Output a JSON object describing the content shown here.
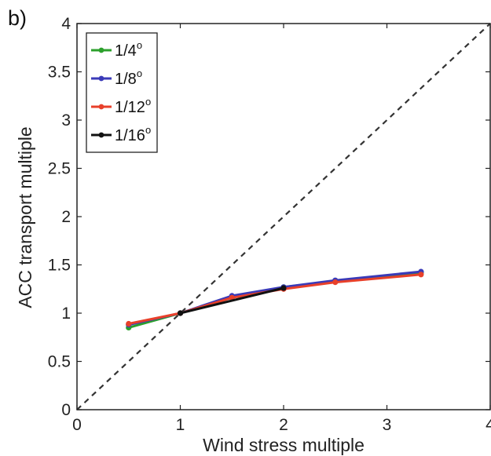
{
  "panel_label": "b)",
  "chart_data": {
    "type": "line",
    "title": "",
    "xlabel": "Wind stress multiple",
    "ylabel": "ACC transport multiple",
    "xlim": [
      0,
      4
    ],
    "ylim": [
      0,
      4
    ],
    "xticks": [
      "0",
      "1",
      "2",
      "3",
      "4"
    ],
    "yticks": [
      "0",
      "0.5",
      "1",
      "1.5",
      "2",
      "2.5",
      "3",
      "3.5",
      "4"
    ],
    "grid": false,
    "legend_position": "top-left",
    "reference_line": {
      "style": "dashed",
      "color": "#333333",
      "x": [
        0,
        4
      ],
      "y": [
        0,
        4
      ]
    },
    "series": [
      {
        "name": "1/4",
        "sup": "o",
        "color": "#2ca02c",
        "x": [
          0.5,
          1,
          1.5,
          2,
          2.5,
          3.33
        ],
        "y": [
          0.85,
          1.0,
          1.17,
          1.27,
          1.33,
          1.42
        ]
      },
      {
        "name": "1/8",
        "sup": "o",
        "color": "#3a3ab8",
        "x": [
          0.5,
          1,
          1.5,
          2,
          2.5,
          3.33
        ],
        "y": [
          0.88,
          1.0,
          1.18,
          1.27,
          1.34,
          1.43
        ]
      },
      {
        "name": "1/12",
        "sup": "o",
        "color": "#e8402a",
        "x": [
          0.5,
          1,
          1.5,
          2,
          2.5,
          3.33
        ],
        "y": [
          0.89,
          1.0,
          1.16,
          1.25,
          1.32,
          1.4
        ]
      },
      {
        "name": "1/16",
        "sup": "o",
        "color": "#111111",
        "x": [
          1,
          2
        ],
        "y": [
          1.0,
          1.26
        ]
      }
    ]
  }
}
